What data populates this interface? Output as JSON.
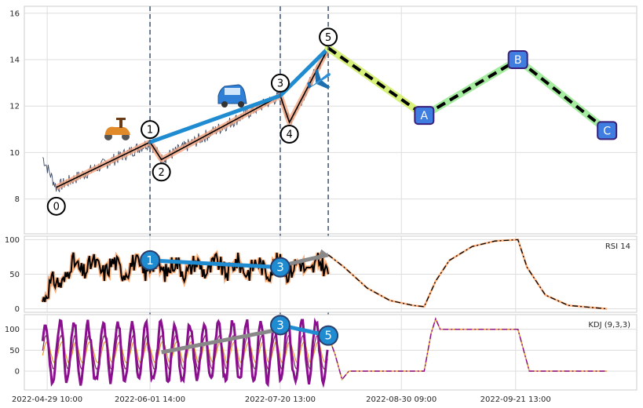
{
  "chart_data": [
    {
      "type": "line",
      "panel": "price",
      "xticks": [
        "2022-04-29 10:00",
        "2022-06-01 14:00",
        "2022-07-20 13:00",
        "2022-08-30 09:00",
        "2022-09-21 13:00"
      ],
      "ylim": [
        6.5,
        16.3
      ],
      "yticks": [
        8,
        10,
        12,
        14,
        16
      ],
      "grid": true,
      "wave_points": [
        {
          "label": "0",
          "t": 4,
          "y": 8.5
        },
        {
          "label": "1",
          "t": 45,
          "y": 10.45
        },
        {
          "label": "2",
          "t": 50,
          "y": 9.7
        },
        {
          "label": "3",
          "t": 102,
          "y": 12.45
        },
        {
          "label": "4",
          "t": 106,
          "y": 11.3
        },
        {
          "label": "5",
          "t": 123,
          "y": 14.5
        }
      ],
      "projection_points": [
        {
          "label": "A",
          "t": 165,
          "y": 11.6
        },
        {
          "label": "B",
          "t": 206,
          "y": 14.0
        },
        {
          "label": "C",
          "t": 245,
          "y": 10.95
        }
      ],
      "divergence_line": [
        {
          "t": 45,
          "y": 10.45
        },
        {
          "t": 102,
          "y": 12.45
        },
        {
          "t": 123,
          "y": 14.5
        }
      ],
      "vlines_t": [
        45,
        102,
        123
      ],
      "icons": [
        "scooter-icon",
        "car-icon",
        "airplane-icon"
      ]
    },
    {
      "type": "line",
      "panel": "rsi",
      "label": "RSI 14",
      "ylim": [
        -5,
        105
      ],
      "yticks": [
        0,
        50,
        100
      ],
      "grid": true,
      "divergence_points": [
        {
          "label": "1",
          "t": 45,
          "y": 70
        },
        {
          "label": "3",
          "t": 102,
          "y": 60
        }
      ],
      "trend_line": [
        {
          "t": 102,
          "y": 62
        },
        {
          "t": 123,
          "y": 78
        }
      ],
      "projection_path": [
        {
          "t": 123,
          "y": 78
        },
        {
          "t": 130,
          "y": 60
        },
        {
          "t": 140,
          "y": 30
        },
        {
          "t": 150,
          "y": 12
        },
        {
          "t": 160,
          "y": 5
        },
        {
          "t": 165,
          "y": 3
        },
        {
          "t": 170,
          "y": 40
        },
        {
          "t": 176,
          "y": 70
        },
        {
          "t": 186,
          "y": 90
        },
        {
          "t": 196,
          "y": 98
        },
        {
          "t": 206,
          "y": 100
        },
        {
          "t": 210,
          "y": 60
        },
        {
          "t": 218,
          "y": 20
        },
        {
          "t": 228,
          "y": 5
        },
        {
          "t": 245,
          "y": 0
        }
      ]
    },
    {
      "type": "line",
      "panel": "kdj",
      "label": "KDJ (9,3,3)",
      "ylim": [
        -45,
        135
      ],
      "yticks": [
        0,
        50,
        100
      ],
      "grid": true,
      "divergence_points": [
        {
          "label": "3",
          "t": 102,
          "y": 110
        },
        {
          "label": "5",
          "t": 123,
          "y": 85
        }
      ],
      "trend_line": [
        {
          "t": 50,
          "y": 45
        },
        {
          "t": 102,
          "y": 100
        }
      ],
      "projection_path": [
        {
          "t": 123,
          "y": 85
        },
        {
          "t": 126,
          "y": 40
        },
        {
          "t": 129,
          "y": -20
        },
        {
          "t": 132,
          "y": 0
        },
        {
          "t": 165,
          "y": 0
        },
        {
          "t": 168,
          "y": 90
        },
        {
          "t": 170,
          "y": 125
        },
        {
          "t": 172,
          "y": 100
        },
        {
          "t": 206,
          "y": 100
        },
        {
          "t": 209,
          "y": 40
        },
        {
          "t": 211,
          "y": 0
        },
        {
          "t": 245,
          "y": 0
        }
      ]
    }
  ]
}
